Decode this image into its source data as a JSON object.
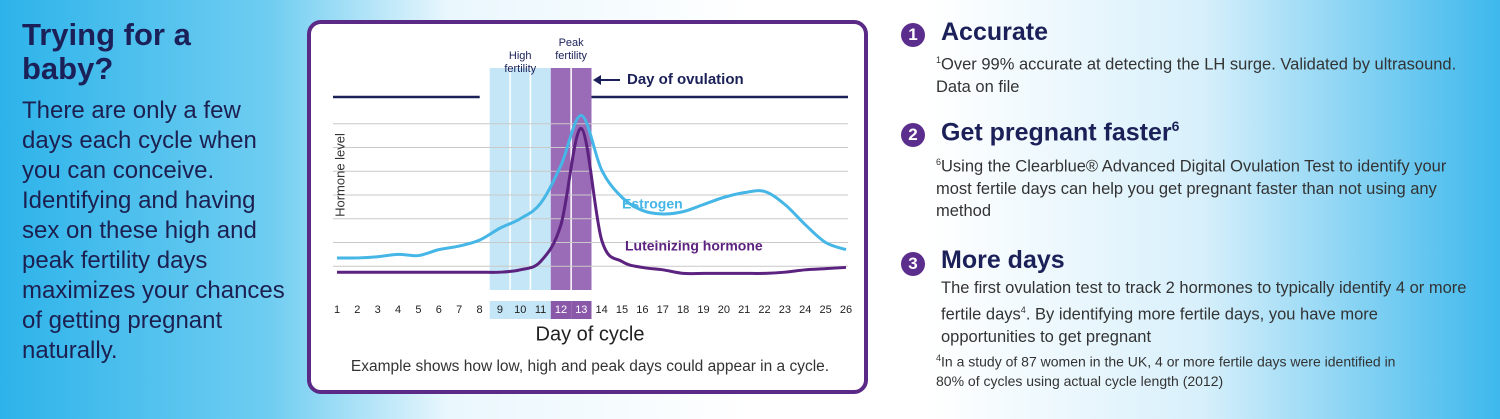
{
  "left": {
    "title": "Trying for a baby?",
    "body": "There are only a few days each cycle when you can conceive. Identifying and having sex on these high and peak fertility days maximizes your chances of getting pregnant naturally."
  },
  "chart_data": {
    "type": "line",
    "high_label": "High fertility",
    "peak_label": "Peak fertility",
    "ovulation_label": "Day of ovulation",
    "y_label": "Hormone level",
    "x_label": "Day of cycle",
    "caption": "Example shows how low, high and peak days could appear in a cycle.",
    "categories": [
      "1",
      "2",
      "3",
      "4",
      "5",
      "6",
      "7",
      "8",
      "9",
      "10",
      "11",
      "12",
      "13",
      "14",
      "15",
      "16",
      "17",
      "18",
      "19",
      "20",
      "21",
      "22",
      "23",
      "24",
      "25",
      "26"
    ],
    "series": [
      {
        "name": "Estrogen",
        "color": "#45b6e6",
        "values": [
          1.35,
          1.35,
          1.4,
          1.5,
          1.45,
          1.7,
          1.85,
          2.1,
          2.6,
          3.0,
          3.65,
          5.25,
          7.35,
          5.05,
          3.9,
          3.35,
          3.2,
          3.3,
          3.6,
          3.9,
          4.1,
          4.15,
          3.6,
          2.75,
          2.0,
          1.7
        ]
      },
      {
        "name": "Luteinizing hormone",
        "color": "#5c2280",
        "values": [
          0.75,
          0.75,
          0.75,
          0.75,
          0.75,
          0.75,
          0.75,
          0.75,
          0.75,
          0.85,
          1.2,
          2.75,
          6.8,
          2.1,
          1.2,
          0.95,
          0.85,
          0.7,
          0.7,
          0.7,
          0.7,
          0.7,
          0.75,
          0.85,
          0.9,
          0.95
        ]
      }
    ],
    "ylim": [
      0,
      8
    ],
    "yticks": [
      1,
      2,
      3,
      4,
      5,
      6,
      7
    ],
    "grid": true
  },
  "items": [
    {
      "number": "1",
      "title": "Accurate",
      "marker": "1",
      "body": "Over 99% accurate at detecting the LH surge. Validated by ultrasound. Data on file"
    },
    {
      "number": "2",
      "title": "Get pregnant faster",
      "title_sup": "6",
      "marker": "6",
      "body": "Using the Clearblue® Advanced Digital Ovulation Test to identify your most fertile days can help you get pregnant faster than not using any method"
    },
    {
      "number": "3",
      "title": "More days",
      "body_before": "The first ovulation test to track 2 hormones to typically identify 4 or more fertile days",
      "body_sup": "4",
      "body_after": ". By identifying more fertile days, you have more opportunities to get pregnant",
      "footnote_marker": "4",
      "footnote": "In a study of 87 women in the UK, 4 or more fertile days were identified in 80% of cycles using actual cycle length (2012)"
    }
  ]
}
